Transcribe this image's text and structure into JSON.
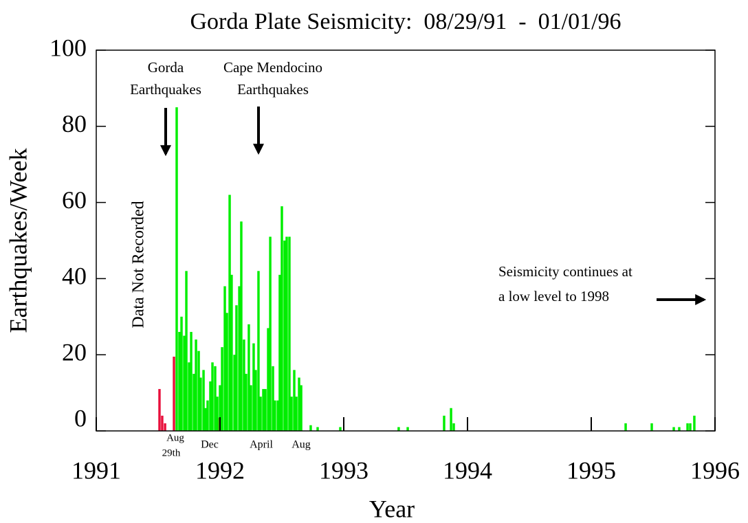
{
  "chart_data": {
    "type": "bar",
    "title": "Gorda Plate Seismicity:  08/29/91  -  01/01/96",
    "x_label": "Year",
    "y_label": "Earthquakes/Week",
    "xlim": [
      1991,
      1996
    ],
    "xticks": [
      1991,
      1992,
      1993,
      1994,
      1995,
      1996
    ],
    "ylim": [
      0,
      100
    ],
    "yticks": [
      0,
      20,
      40,
      60,
      80,
      100
    ],
    "grid": false,
    "series": [
      {
        "color": "#e8103c",
        "x": [
          1991.511,
          1991.533,
          1991.556,
          1991.628,
          1991.678,
          1991.994
        ],
        "values": [
          11,
          4,
          2,
          19.5,
          2,
          3.5
        ]
      },
      {
        "color": "#00ee00",
        "x": [
          1991.65,
          1991.672,
          1991.689,
          1991.711,
          1991.728,
          1991.75,
          1991.767,
          1991.789,
          1991.806,
          1991.828,
          1991.844,
          1991.867,
          1991.883,
          1991.9,
          1991.922,
          1991.939,
          1991.961,
          1991.978,
          1992.0,
          1992.017,
          1992.039,
          1992.056,
          1992.078,
          1992.094,
          1992.117,
          1992.133,
          1992.156,
          1992.172,
          1992.194,
          1992.211,
          1992.233,
          1992.25,
          1992.272,
          1992.289,
          1992.311,
          1992.328,
          1992.35,
          1992.367,
          1992.389,
          1992.406,
          1992.428,
          1992.444,
          1992.467,
          1992.483,
          1992.5,
          1992.522,
          1992.539,
          1992.561,
          1992.578,
          1992.6,
          1992.617,
          1992.639,
          1992.656,
          1992.733,
          1992.789,
          1992.972,
          1993.444,
          1993.517,
          1993.811,
          1993.867,
          1993.889,
          1995.278,
          1995.489,
          1995.667,
          1995.711,
          1995.778,
          1995.8,
          1995.833
        ],
        "values": [
          85,
          26,
          30,
          25,
          42,
          18,
          26,
          15,
          24,
          21,
          14,
          16,
          6,
          8,
          13,
          18,
          17,
          9,
          12,
          22,
          38,
          31,
          62,
          41,
          20,
          33,
          38,
          55,
          24,
          15,
          28,
          12,
          23,
          16,
          42,
          9,
          11,
          11,
          27,
          51,
          17,
          8,
          8,
          41,
          59,
          50,
          51,
          51,
          9,
          16,
          9,
          14,
          12,
          1.5,
          1,
          1,
          1,
          1,
          4,
          6,
          2,
          2,
          2,
          1,
          1,
          2,
          2,
          4
        ]
      }
    ],
    "annotations": [
      {
        "lines": [
          "Gorda",
          "Earthquakes"
        ]
      },
      {
        "lines": [
          "Cape Mendocino",
          "Earthquakes"
        ]
      },
      {
        "lines": [
          "Data Not Recorded"
        ]
      },
      {
        "lines": [
          "Seismicity continues at",
          "a low level to 1998"
        ]
      },
      {
        "lines": [
          "Aug",
          "29th"
        ]
      },
      {
        "lines": [
          "Dec"
        ]
      },
      {
        "lines": [
          "April"
        ]
      },
      {
        "lines": [
          "Aug"
        ]
      }
    ]
  }
}
